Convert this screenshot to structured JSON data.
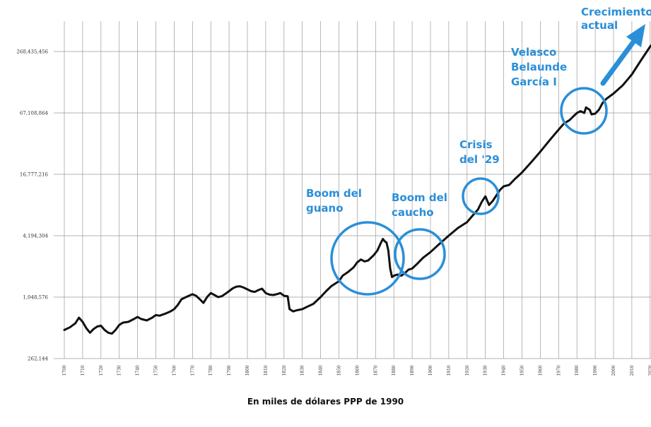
{
  "chart_data": {
    "type": "line",
    "title": "",
    "xlabel": "En miles de dólares PPP de 1990",
    "ylabel": "",
    "y_scale": "log",
    "grid": true,
    "xlim": [
      1700,
      2025
    ],
    "ylim": [
      262144,
      536870912
    ],
    "y_ticks": [
      {
        "value": 262144,
        "label": "262,144"
      },
      {
        "value": 1048576,
        "label": "1,048,576"
      },
      {
        "value": 4194304,
        "label": "4,194,304"
      },
      {
        "value": 16777216,
        "label": "16,777,216"
      },
      {
        "value": 67108864,
        "label": "67,108,864"
      },
      {
        "value": 268435456,
        "label": "268,435,456"
      }
    ],
    "x_ticks": [
      "1700",
      "1710",
      "1720",
      "1730",
      "1740",
      "1750",
      "1760",
      "1770",
      "1780",
      "1790",
      "1800",
      "1810",
      "1820",
      "1830",
      "1840",
      "1850",
      "1860",
      "1870",
      "1880",
      "1890",
      "1900",
      "1910",
      "1920",
      "1930",
      "1940",
      "1950",
      "1960",
      "1970",
      "1980",
      "1990",
      "2000",
      "2010",
      "2020"
    ],
    "series": [
      {
        "color": "#111111",
        "x": [
          1700,
          1703,
          1706,
          1708,
          1710,
          1712,
          1714,
          1716,
          1718,
          1720,
          1722,
          1724,
          1726,
          1728,
          1730,
          1732,
          1735,
          1738,
          1740,
          1742,
          1745,
          1748,
          1750,
          1752,
          1755,
          1758,
          1760,
          1762,
          1764,
          1766,
          1768,
          1770,
          1772,
          1774,
          1776,
          1778,
          1780,
          1782,
          1784,
          1786,
          1788,
          1790,
          1792,
          1794,
          1796,
          1798,
          1800,
          1802,
          1804,
          1806,
          1808,
          1810,
          1812,
          1814,
          1816,
          1818,
          1820,
          1822,
          1823,
          1825,
          1827,
          1830,
          1833,
          1836,
          1840,
          1843,
          1846,
          1850,
          1852,
          1855,
          1858,
          1860,
          1862,
          1864,
          1866,
          1867,
          1869,
          1871,
          1873,
          1874,
          1875,
          1876,
          1877,
          1878,
          1879,
          1880,
          1882,
          1884,
          1886,
          1888,
          1890,
          1893,
          1896,
          1900,
          1905,
          1910,
          1915,
          1920,
          1923,
          1926,
          1928,
          1930,
          1932,
          1934,
          1936,
          1938,
          1940,
          1943,
          1946,
          1950,
          1955,
          1960,
          1965,
          1970,
          1973,
          1976,
          1978,
          1980,
          1982,
          1984,
          1985,
          1987,
          1988,
          1990,
          1992,
          1994,
          1996,
          2000,
          2005,
          2010,
          2015,
          2020,
          2025
        ],
        "values": [
          500000,
          530000,
          580000,
          660000,
          600000,
          520000,
          470000,
          510000,
          540000,
          550000,
          500000,
          470000,
          460000,
          500000,
          560000,
          590000,
          600000,
          640000,
          670000,
          640000,
          620000,
          660000,
          700000,
          690000,
          720000,
          760000,
          800000,
          880000,
          1000000,
          1040000,
          1080000,
          1120000,
          1080000,
          1000000,
          920000,
          1050000,
          1150000,
          1100000,
          1050000,
          1070000,
          1130000,
          1200000,
          1280000,
          1330000,
          1340000,
          1300000,
          1250000,
          1200000,
          1180000,
          1230000,
          1270000,
          1150000,
          1110000,
          1100000,
          1120000,
          1150000,
          1080000,
          1070000,
          800000,
          760000,
          780000,
          800000,
          850000,
          900000,
          1050000,
          1200000,
          1350000,
          1500000,
          1700000,
          1850000,
          2050000,
          2300000,
          2450000,
          2350000,
          2400000,
          2500000,
          2700000,
          3000000,
          3600000,
          3900000,
          3700000,
          3600000,
          3000000,
          2000000,
          1650000,
          1700000,
          1750000,
          1700000,
          1800000,
          1950000,
          2000000,
          2250000,
          2550000,
          2900000,
          3500000,
          4200000,
          5000000,
          5700000,
          6600000,
          7600000,
          9000000,
          10200000,
          8400000,
          9200000,
          10400000,
          11800000,
          12800000,
          13200000,
          15000000,
          17500000,
          22000000,
          28000000,
          36000000,
          46000000,
          53000000,
          57000000,
          62000000,
          67000000,
          70000000,
          67000000,
          76000000,
          72000000,
          65000000,
          66000000,
          72000000,
          84000000,
          92000000,
          104000000,
          125000000,
          160000000,
          220000000,
          300000000,
          380000000
        ]
      }
    ],
    "annotations": [
      {
        "lines": [
          "Crecimiento",
          "actual"
        ]
      },
      {
        "lines": [
          "Velasco",
          "Belaunde",
          "García I"
        ]
      },
      {
        "lines": [
          "Crisis",
          "del '29"
        ]
      },
      {
        "lines": [
          "Boom del",
          "guano"
        ]
      },
      {
        "lines": [
          "Boom del",
          "caucho"
        ]
      }
    ]
  }
}
